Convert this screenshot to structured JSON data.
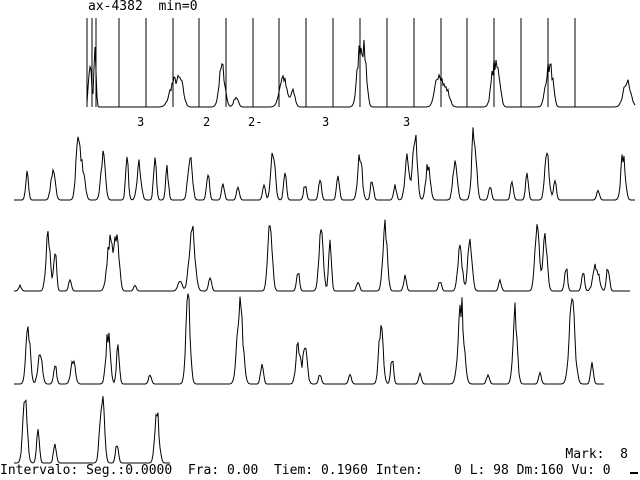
{
  "header": {
    "max_text": "ax-4382",
    "min_text": "min=0"
  },
  "markers": [
    "3",
    "2",
    "2-",
    "3",
    "3"
  ],
  "mark_indicator": {
    "label": "Mark:",
    "value": "8"
  },
  "status": {
    "intervalo_label": "Intervalo:",
    "seg_label": "Seg.:",
    "seg_value": "0.0000",
    "fra_label": "Fra:",
    "fra_value": "0.00",
    "tiem_label": "Tiem:",
    "tiem_value": "0.1960",
    "inten_label": "Inten:",
    "inten_value": "0",
    "l_label": "L:",
    "l_value": "98",
    "dm_label": "Dm:",
    "dm_value": "160",
    "vu_label": "Vu:",
    "vu_value": "0"
  },
  "colors": {
    "background": "#ffffff",
    "trace": "#000000"
  }
}
